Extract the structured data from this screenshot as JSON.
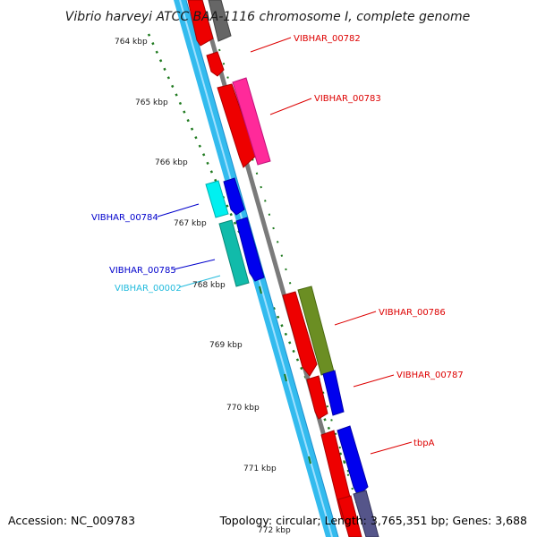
{
  "title": "Vibrio harveyi ATCC BAA-1116 chromosome I, complete genome",
  "footer": {
    "accession": "Accession: NC_009783",
    "summary": "Topology: circular; Length: 3,765,351 bp; Genes: 3,688"
  },
  "colors": {
    "backbone": "#33bbee",
    "backbone_dark": "#1e8fcc",
    "strand_line": "#7a7a7a",
    "tick_dots": "#1f7a1f",
    "label_red": "#dd0000",
    "label_blue": "#0000cc",
    "label_cyan": "#22bbdd"
  },
  "ticks": [
    {
      "label": "764 kbp"
    },
    {
      "label": "765 kbp"
    },
    {
      "label": "766 kbp"
    },
    {
      "label": "767 kbp"
    },
    {
      "label": "768 kbp"
    },
    {
      "label": "769 kbp"
    },
    {
      "label": "770 kbp"
    },
    {
      "label": "771 kbp"
    },
    {
      "label": "772 kbp"
    }
  ],
  "genes": [
    {
      "label": "VIBHAR_00782",
      "color_key": "label_red"
    },
    {
      "label": "VIBHAR_00783",
      "color_key": "label_red"
    },
    {
      "label": "VIBHAR_00784",
      "color_key": "label_blue"
    },
    {
      "label": "VIBHAR_00785",
      "color_key": "label_blue"
    },
    {
      "label": "VIBHAR_00002",
      "color_key": "label_cyan"
    },
    {
      "label": "VIBHAR_00786",
      "color_key": "label_red"
    },
    {
      "label": "VIBHAR_00787",
      "color_key": "label_red"
    },
    {
      "label": "tbpA",
      "color_key": "label_red"
    }
  ]
}
